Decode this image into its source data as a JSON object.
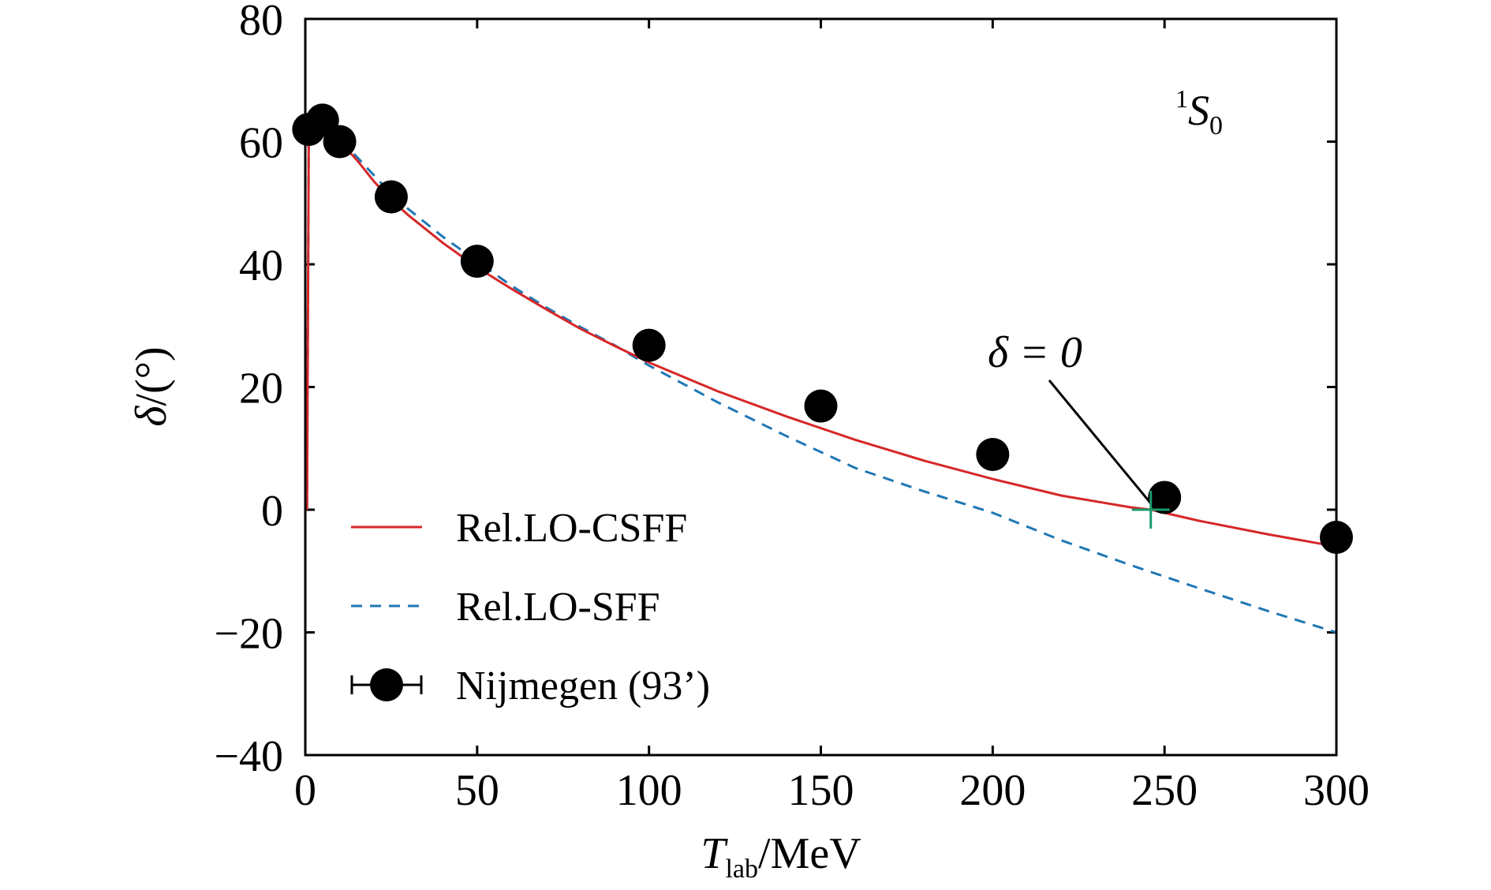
{
  "chart_data": {
    "type": "line",
    "xlabel": {
      "main": "T",
      "sub": "lab",
      "unit": "/MeV"
    },
    "ylabel": {
      "symbol": "δ",
      "unit": "/(°)"
    },
    "xlim": [
      0,
      300
    ],
    "ylim": [
      -40,
      80
    ],
    "xticks": [
      0,
      50,
      100,
      150,
      200,
      250,
      300
    ],
    "yticks": [
      -40,
      -20,
      0,
      20,
      40,
      60,
      80
    ],
    "xtick_labels": [
      "0",
      "50",
      "100",
      "150",
      "200",
      "250",
      "300"
    ],
    "ytick_labels": [
      "−40",
      "−20",
      "0",
      "20",
      "40",
      "60",
      "80"
    ],
    "grid": false,
    "legend_position": "lower-left",
    "panel_label": {
      "sup": "1",
      "main": "S",
      "sub": "0"
    },
    "annotation": {
      "text": "δ = 0",
      "x": 246,
      "y": 0
    },
    "series": [
      {
        "name": "Rel.LO-CSFF",
        "style": "solid",
        "color": "#d62728",
        "x": [
          0.5,
          1,
          2,
          3,
          5,
          8,
          10,
          15,
          20,
          25,
          30,
          40,
          50,
          60,
          70,
          80,
          90,
          100,
          120,
          140,
          160,
          180,
          200,
          220,
          240,
          246,
          260,
          280,
          300
        ],
        "y": [
          0,
          61,
          62.5,
          62.5,
          62,
          61,
          60,
          57,
          53.5,
          50.5,
          48,
          43.5,
          39.5,
          36,
          32.7,
          29.5,
          26.7,
          24,
          19.3,
          15.2,
          11.4,
          8,
          5,
          2.3,
          0.4,
          0,
          -1.8,
          -4,
          -6
        ]
      },
      {
        "name": "Rel.LO-SFF",
        "style": "dashed",
        "color": "#1f77b4",
        "x": [
          0.5,
          1,
          2,
          3,
          5,
          8,
          10,
          15,
          20,
          25,
          30,
          40,
          50,
          60,
          70,
          80,
          90,
          100,
          120,
          140,
          160,
          180,
          200,
          220,
          240,
          260,
          280,
          300
        ],
        "y": [
          0,
          61,
          62.5,
          62.5,
          62,
          61,
          60.5,
          57.5,
          54.5,
          51.5,
          49,
          44.5,
          40.5,
          36.5,
          33,
          29.8,
          26.8,
          23.5,
          17.5,
          12,
          6.8,
          3,
          -0.5,
          -5,
          -9,
          -12.8,
          -16.5,
          -20
        ]
      },
      {
        "name": "Nijmegen (93’)",
        "style": "markers",
        "color": "#000000",
        "x": [
          1,
          5,
          10,
          25,
          50,
          100,
          150,
          200,
          250,
          300
        ],
        "y": [
          62,
          63.5,
          60,
          51,
          40.5,
          26.8,
          16.9,
          9,
          2,
          -4.5
        ]
      }
    ]
  }
}
